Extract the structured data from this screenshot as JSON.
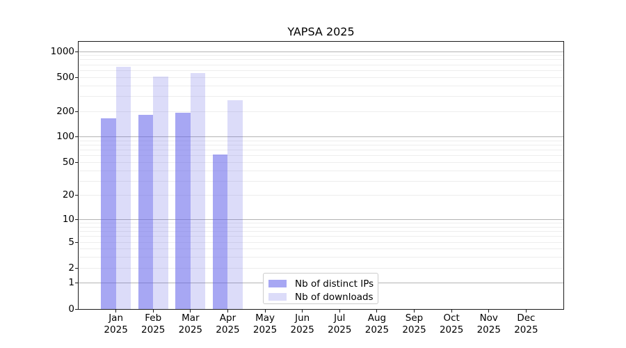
{
  "title": "YAPSA 2025",
  "colors": {
    "ip_bar": "rgba(95,95,233,0.55)",
    "dl_bar": "rgba(96,96,228,0.22)",
    "grid_major": "#b3b3b3",
    "grid_minor": "#ededed",
    "spine": "#1a1a1a",
    "text": "#000000"
  },
  "legend": {
    "items": [
      {
        "label": "Nb of distinct IPs",
        "color": "rgba(95,95,233,0.55)"
      },
      {
        "label": "Nb of downloads",
        "color": "rgba(96,96,228,0.22)"
      }
    ]
  },
  "chart_data": {
    "type": "bar",
    "title": "YAPSA 2025",
    "categories": [
      "Jan",
      "Feb",
      "Mar",
      "Apr",
      "May",
      "Jun",
      "Jul",
      "Aug",
      "Sep",
      "Oct",
      "Nov",
      "Dec"
    ],
    "category_year": "2025",
    "series": [
      {
        "name": "Nb of distinct IPs",
        "values": [
          165,
          182,
          192,
          62,
          null,
          null,
          null,
          null,
          null,
          null,
          null,
          null
        ]
      },
      {
        "name": "Nb of downloads",
        "values": [
          663,
          514,
          560,
          270,
          null,
          null,
          null,
          null,
          null,
          null,
          null,
          null
        ]
      }
    ],
    "yscale": "log1p",
    "yticks": [
      0,
      1,
      2,
      5,
      10,
      20,
      50,
      100,
      200,
      500,
      1000
    ],
    "ylim": [
      0,
      1300
    ],
    "xlabel": "",
    "ylabel": "",
    "grid": "horizontal",
    "legend_position": "inside-bottom-center"
  }
}
